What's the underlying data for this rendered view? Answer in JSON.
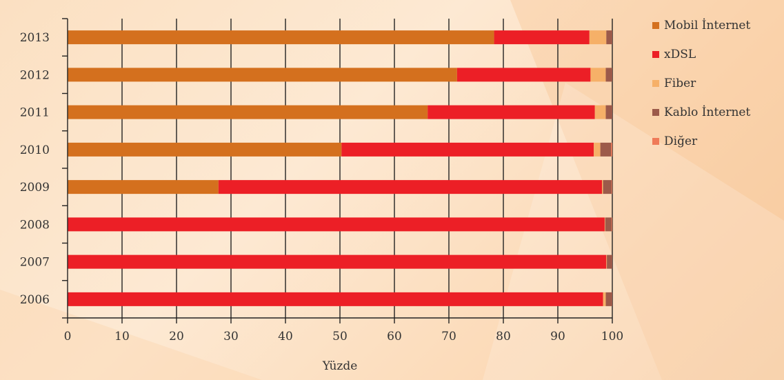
{
  "chart_data": {
    "type": "bar",
    "orientation": "horizontal",
    "stacked": true,
    "title": "",
    "xlabel": "Yüzde",
    "ylabel": "",
    "xlim": [
      0,
      100
    ],
    "xticks": [
      0,
      10,
      20,
      30,
      40,
      50,
      60,
      70,
      80,
      90,
      100
    ],
    "categories": [
      "2013",
      "2012",
      "2011",
      "2010",
      "2009",
      "2008",
      "2007",
      "2006"
    ],
    "series": [
      {
        "name": "Mobil İnternet",
        "color": "#d4701e",
        "values": [
          78.3,
          71.5,
          66.1,
          50.3,
          27.7,
          0,
          0,
          0
        ]
      },
      {
        "name": "xDSL",
        "color": "#ec1f26",
        "values": [
          17.5,
          24.5,
          30.7,
          46.3,
          70.4,
          98.6,
          98.9,
          98.3
        ]
      },
      {
        "name": "Fiber",
        "color": "#f6b068",
        "values": [
          3.1,
          2.8,
          2.0,
          1.2,
          0.2,
          0.1,
          0.1,
          0.5
        ]
      },
      {
        "name": "Kablo İnternet",
        "color": "#9c5a4a",
        "values": [
          1.1,
          1.2,
          1.2,
          2.0,
          1.6,
          1.2,
          1.0,
          1.2
        ]
      },
      {
        "name": "Diğer",
        "color": "#ef7a58",
        "values": [
          0,
          0,
          0,
          0.2,
          0.1,
          0.1,
          0,
          0
        ]
      }
    ],
    "grid": true,
    "legend_position": "right"
  }
}
